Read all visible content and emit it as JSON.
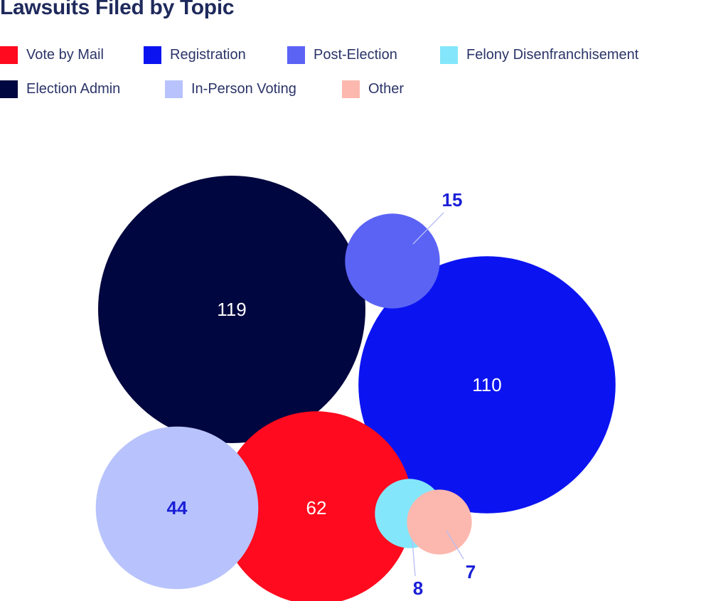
{
  "chart_data": {
    "type": "bubble",
    "title": "Lawsuits Filed by Topic",
    "legend_position": "top",
    "series": [
      {
        "name": "Vote by Mail",
        "value": 62,
        "color": "#ff0a1e"
      },
      {
        "name": "Registration",
        "value": 110,
        "color": "#0b14f0"
      },
      {
        "name": "Post-Election",
        "value": 15,
        "color": "#5b63f5"
      },
      {
        "name": "Felony Disenfranchisement",
        "value": 8,
        "color": "#84e6fa"
      },
      {
        "name": "Election Admin",
        "value": 119,
        "color": "#00063f"
      },
      {
        "name": "In-Person Voting",
        "value": 44,
        "color": "#b8c3fd"
      },
      {
        "name": "Other",
        "value": 7,
        "color": "#fcb8ae"
      }
    ],
    "legend": [
      "Vote by Mail",
      "Registration",
      "Post-Election",
      "Felony Disenfranchisement",
      "Election Admin",
      "In-Person Voting",
      "Other"
    ],
    "labels": {
      "Vote by Mail": "62",
      "Registration": "110",
      "Post-Election": "15",
      "Felony Disenfranchisement": "8",
      "Election Admin": "119",
      "In-Person Voting": "44",
      "Other": "7"
    }
  },
  "colors": {
    "title_text": "#1f2a5c",
    "legend_text": "#2b3468",
    "outside_label": "#1a1fd6",
    "inner_label_light": "#ffffff",
    "inner_label_dark": "#1a1fd6",
    "leader_line": "#b7bdf5"
  }
}
